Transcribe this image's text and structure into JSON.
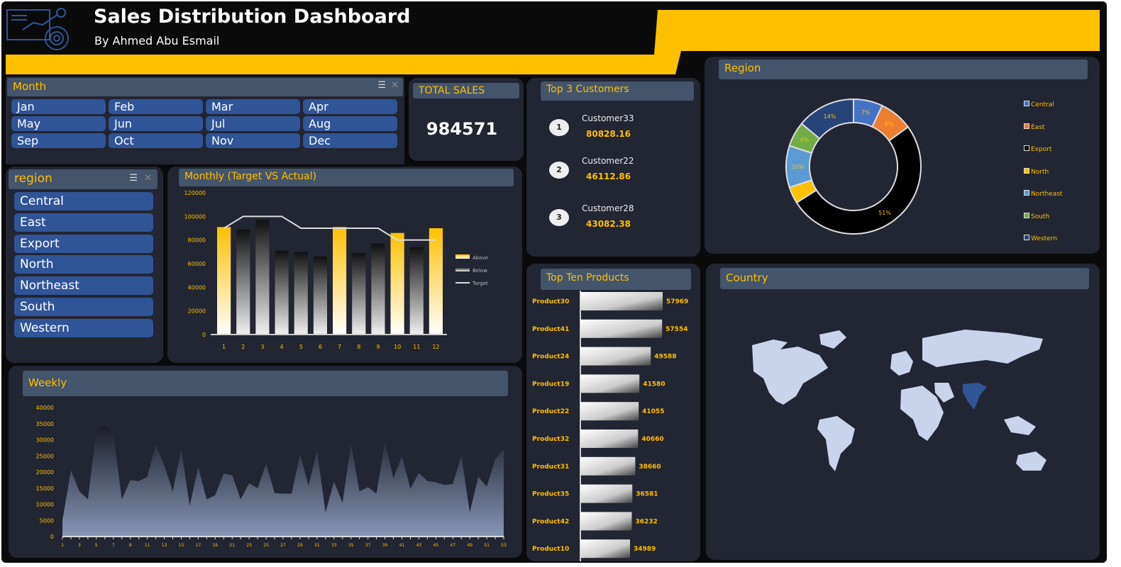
{
  "header": {
    "title": "Sales Distribution Dashboard",
    "subtitle": "By Ahmed Abu Esmail"
  },
  "month_slicer": {
    "title": "Month",
    "items": [
      "Jan",
      "Feb",
      "Mar",
      "Apr",
      "May",
      "Jun",
      "Jul",
      "Aug",
      "Sep",
      "Oct",
      "Nov",
      "Dec"
    ]
  },
  "total_sales": {
    "title": "TOTAL SALES",
    "value": "984571"
  },
  "top_customers": {
    "title": "Top 3 Customers",
    "items": [
      {
        "rank": "1",
        "name": "Customer33",
        "value": "80828.16"
      },
      {
        "rank": "2",
        "name": "Customer22",
        "value": "46112.86"
      },
      {
        "rank": "3",
        "name": "Customer28",
        "value": "43082.38"
      }
    ]
  },
  "region_slicer": {
    "title": "region",
    "items": [
      "Central",
      "East",
      "Export",
      "North",
      "Northeast",
      "South",
      "Western"
    ]
  },
  "colors": {
    "accent": "#ffc000",
    "panel": "#222532",
    "header": "#44546a",
    "button": "#2f5597"
  },
  "chart_data": [
    {
      "type": "bar",
      "title": "Monthly (Target VS Actual)",
      "categories": [
        "1",
        "2",
        "3",
        "4",
        "5",
        "6",
        "7",
        "8",
        "9",
        "10",
        "11",
        "12"
      ],
      "series": [
        {
          "name": "Actual",
          "values": [
            91000,
            89000,
            97000,
            71000,
            70000,
            66000,
            91000,
            69000,
            77000,
            86000,
            74000,
            90000
          ]
        },
        {
          "name": "Target",
          "values": [
            90000,
            100000,
            100000,
            100000,
            90000,
            90000,
            90000,
            90000,
            90000,
            80000,
            80000,
            80000
          ]
        }
      ],
      "above_target": [
        true,
        false,
        false,
        false,
        false,
        false,
        true,
        false,
        false,
        true,
        false,
        true
      ],
      "legend": [
        "Above",
        "Below",
        "Target"
      ],
      "ylim": [
        0,
        120000
      ],
      "yticks": [
        "0",
        "20000",
        "40000",
        "60000",
        "80000",
        "100000",
        "120000"
      ]
    },
    {
      "type": "area",
      "title": "Weekly",
      "values": [
        5000,
        20500,
        14000,
        11500,
        33000,
        34500,
        32000,
        11500,
        17500,
        17200,
        18500,
        28500,
        22000,
        14000,
        27000,
        9500,
        21500,
        11500,
        12800,
        19500,
        19000,
        11500,
        16500,
        15000,
        22500,
        13500,
        13300,
        13300,
        25500,
        15800,
        26500,
        7500,
        17000,
        10500,
        28800,
        14000,
        15300,
        13300,
        29300,
        18000,
        25000,
        14800,
        19700,
        17200,
        16800,
        16000,
        16300,
        25000,
        7500,
        18500,
        15500,
        24000,
        27000
      ],
      "ylim": [
        0,
        40000
      ],
      "yticks": [
        "0",
        "5000",
        "10000",
        "15000",
        "20000",
        "25000",
        "30000",
        "35000",
        "40000"
      ]
    },
    {
      "type": "pie",
      "title": "Region",
      "categories": [
        "Central",
        "East",
        "Export",
        "North",
        "Northeast",
        "South",
        "Western"
      ],
      "values": [
        7,
        8,
        51,
        4,
        10,
        6,
        14
      ],
      "colors": [
        "#4472c4",
        "#ed7d31",
        "#000000",
        "#ffc000",
        "#5b9bd5",
        "#70ad47",
        "#264478"
      ]
    },
    {
      "type": "bar",
      "title": "Top Ten Products",
      "categories": [
        "Product30",
        "Product41",
        "Product24",
        "Product19",
        "Product22",
        "Product32",
        "Product31",
        "Product35",
        "Product42",
        "Product10"
      ],
      "values": [
        57969,
        57554,
        49588,
        41580,
        41055,
        40660,
        38660,
        36581,
        36232,
        34989
      ],
      "orientation": "horizontal"
    }
  ],
  "country": {
    "title": "Country"
  }
}
